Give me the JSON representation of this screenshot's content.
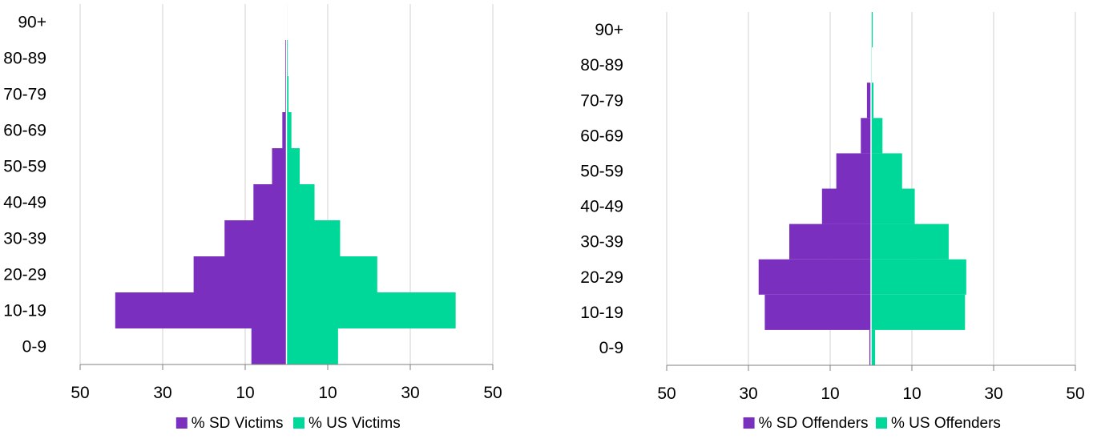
{
  "colors": {
    "sd": "#7B2FBF",
    "us": "#00D89A",
    "grid": "#d0d0d0",
    "axis": "#808080"
  },
  "chart_data": [
    {
      "type": "bar",
      "orientation": "horizontal-population-pyramid",
      "categories": [
        "0-9",
        "10-19",
        "20-29",
        "30-39",
        "40-49",
        "50-59",
        "60-69",
        "70-79",
        "80-89",
        "90+"
      ],
      "series": [
        {
          "name": "% SD Victims",
          "side": "left",
          "values": [
            8.5,
            41.5,
            22.5,
            15,
            8,
            3.5,
            1,
            0.3,
            0.3,
            0.1
          ]
        },
        {
          "name": "% US Victims",
          "side": "right",
          "values": [
            12.5,
            41,
            22,
            13,
            6.8,
            3.2,
            1.2,
            0.5,
            0.3,
            0.1
          ]
        }
      ],
      "xlim": [
        -50,
        50
      ],
      "xticks": [
        -50,
        -30,
        -10,
        10,
        30,
        50
      ],
      "xtick_labels": [
        "50",
        "30",
        "10",
        "10",
        "30",
        "50"
      ],
      "grid": true,
      "legend": "bottom"
    },
    {
      "type": "bar",
      "orientation": "horizontal-population-pyramid",
      "categories": [
        "0-9",
        "10-19",
        "20-29",
        "30-39",
        "40-49",
        "50-59",
        "60-69",
        "70-79",
        "80-89",
        "90+"
      ],
      "series": [
        {
          "name": "% SD Offenders",
          "side": "left",
          "values": [
            0.4,
            26,
            27.5,
            20,
            12,
            8.5,
            2.5,
            1,
            0.1,
            0.1
          ]
        },
        {
          "name": "% US Offenders",
          "side": "right",
          "values": [
            1,
            23,
            23.3,
            19,
            10.7,
            7.6,
            2.8,
            0.6,
            0.2,
            0.4
          ]
        }
      ],
      "xlim": [
        -50,
        50
      ],
      "xticks": [
        -50,
        -30,
        -10,
        10,
        30,
        50
      ],
      "xtick_labels": [
        "50",
        "30",
        "10",
        "10",
        "30",
        "50"
      ],
      "grid": true,
      "legend": "bottom"
    }
  ]
}
